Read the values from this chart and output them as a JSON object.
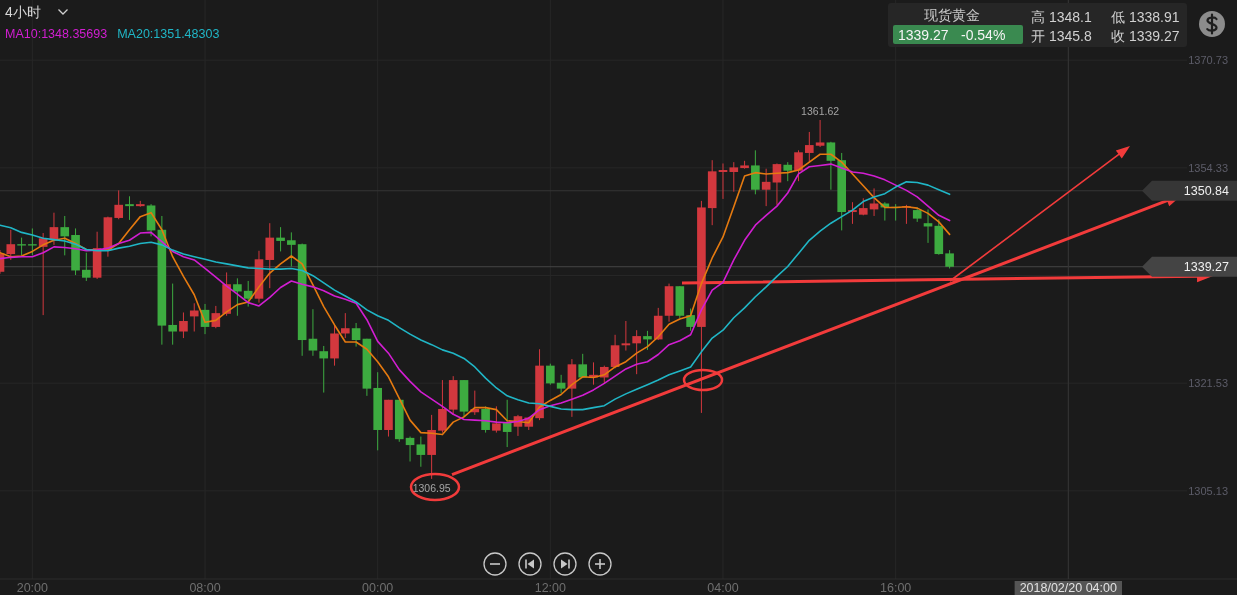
{
  "chart_data": {
    "type": "candlestick",
    "title": "现货黄金",
    "subtitle": "4小时",
    "categories": [
      null,
      null,
      null,
      "20:00",
      null,
      null,
      null,
      null,
      null,
      null,
      null,
      null,
      null,
      null,
      null,
      null,
      null,
      null,
      null,
      "08:00",
      null,
      null,
      null,
      null,
      null,
      null,
      null,
      null,
      null,
      null,
      null,
      null,
      null,
      null,
      null,
      "00:00",
      null,
      null,
      null,
      null,
      null,
      null,
      null,
      null,
      null,
      null,
      null,
      null,
      null,
      null,
      null,
      "12:00",
      null,
      null,
      null,
      null,
      null,
      null,
      null,
      null,
      null,
      null,
      null,
      null,
      null,
      null,
      null,
      "04:00",
      null,
      null,
      null,
      null,
      null,
      null,
      null,
      null,
      null,
      null,
      null,
      null,
      null,
      null,
      null,
      "16:00",
      null,
      null,
      null,
      null,
      null,
      null,
      null,
      null,
      null,
      null,
      null,
      null,
      null,
      null,
      null,
      "2018/02/20 04:00",
      null,
      null,
      null,
      null,
      null,
      null,
      null,
      null,
      null,
      null
    ],
    "ohlc": [
      [
        1338.5,
        1341.8,
        1338.2,
        1341.3
      ],
      [
        1341.2,
        1344.9,
        1340.3,
        1342.7
      ],
      [
        1342.7,
        1343.7,
        1341.0,
        1342.5
      ],
      [
        1342.7,
        1345.1,
        1341.0,
        1342.5
      ],
      [
        1342.3,
        1344.4,
        1331.9,
        1343.6
      ],
      [
        1343.3,
        1347.5,
        1342.6,
        1345.3
      ],
      [
        1345.3,
        1347.0,
        1341.0,
        1343.9
      ],
      [
        1344.1,
        1345.1,
        1338.0,
        1338.7
      ],
      [
        1338.8,
        1341.4,
        1337.1,
        1337.6
      ],
      [
        1337.6,
        1344.6,
        1337.4,
        1342.1
      ],
      [
        1341.8,
        1346.9,
        1340.8,
        1346.8
      ],
      [
        1346.7,
        1350.9,
        1346.5,
        1348.7
      ],
      [
        1348.8,
        1350.0,
        1346.4,
        1348.5
      ],
      [
        1348.5,
        1349.3,
        1348.4,
        1348.8
      ],
      [
        1348.6,
        1348.8,
        1343.9,
        1344.8
      ],
      [
        1344.9,
        1347.0,
        1327.4,
        1330.3
      ],
      [
        1330.4,
        1336.7,
        1327.4,
        1329.4
      ],
      [
        1329.4,
        1332.3,
        1328.4,
        1331.0
      ],
      [
        1331.7,
        1333.7,
        1329.4,
        1332.6
      ],
      [
        1332.7,
        1333.6,
        1329.0,
        1330.1
      ],
      [
        1330.1,
        1333.3,
        1329.9,
        1332.2
      ],
      [
        1332.1,
        1338.4,
        1331.8,
        1336.6
      ],
      [
        1336.6,
        1337.5,
        1331.8,
        1335.5
      ],
      [
        1335.6,
        1337.1,
        1333.2,
        1334.4
      ],
      [
        1334.4,
        1341.7,
        1333.8,
        1340.4
      ],
      [
        1340.3,
        1345.9,
        1336.0,
        1343.7
      ],
      [
        1343.7,
        1345.3,
        1341.6,
        1343.2
      ],
      [
        1343.3,
        1344.5,
        1339.3,
        1342.6
      ],
      [
        1342.7,
        1342.8,
        1325.7,
        1328.1
      ],
      [
        1328.3,
        1332.8,
        1325.7,
        1326.5
      ],
      [
        1326.4,
        1327.2,
        1320.1,
        1325.3
      ],
      [
        1325.3,
        1330.4,
        1324.2,
        1329.1
      ],
      [
        1329.1,
        1332.2,
        1328.4,
        1329.9
      ],
      [
        1329.9,
        1330.7,
        1327.1,
        1328.1
      ],
      [
        1328.3,
        1328.3,
        1319.6,
        1320.7
      ],
      [
        1320.8,
        1323.2,
        1311.3,
        1314.4
      ],
      [
        1314.4,
        1319.0,
        1313.4,
        1319.0
      ],
      [
        1319.0,
        1319.0,
        1312.6,
        1313.0
      ],
      [
        1313.2,
        1313.4,
        1309.6,
        1312.1
      ],
      [
        1312.2,
        1313.4,
        1308.8,
        1310.6
      ],
      [
        1310.6,
        1316.7,
        1306.95,
        1314.4
      ],
      [
        1314.3,
        1322.0,
        1314.0,
        1317.6
      ],
      [
        1317.5,
        1322.6,
        1316.7,
        1322.0
      ],
      [
        1322.0,
        1322.0,
        1316.4,
        1317.2
      ],
      [
        1317.1,
        1320.4,
        1316.7,
        1317.6
      ],
      [
        1317.6,
        1318.0,
        1314.0,
        1314.4
      ],
      [
        1314.3,
        1318.0,
        1314.0,
        1315.4
      ],
      [
        1315.5,
        1319.0,
        1311.8,
        1314.1
      ],
      [
        1314.9,
        1316.7,
        1313.5,
        1316.5
      ],
      [
        1314.9,
        1316.4,
        1314.4,
        1316.3
      ],
      [
        1316.2,
        1326.7,
        1315.9,
        1324.2
      ],
      [
        1324.2,
        1324.5,
        1321.3,
        1321.5
      ],
      [
        1321.6,
        1322.8,
        1320.0,
        1320.7
      ],
      [
        1320.7,
        1325.2,
        1316.4,
        1324.4
      ],
      [
        1324.4,
        1326.0,
        1322.3,
        1322.4
      ],
      [
        1322.4,
        1324.7,
        1321.3,
        1322.8
      ],
      [
        1322.4,
        1324.2,
        1321.5,
        1324.0
      ],
      [
        1324.0,
        1328.9,
        1323.8,
        1327.3
      ],
      [
        1327.3,
        1331.0,
        1326.5,
        1327.6
      ],
      [
        1327.6,
        1329.6,
        1322.9,
        1328.7
      ],
      [
        1328.7,
        1329.5,
        1326.6,
        1328.2
      ],
      [
        1328.2,
        1333.0,
        1328.1,
        1331.8
      ],
      [
        1331.8,
        1336.7,
        1330.9,
        1336.3
      ],
      [
        1336.3,
        1336.3,
        1331.4,
        1331.8
      ],
      [
        1331.9,
        1332.9,
        1329.5,
        1330.1
      ],
      [
        1330.1,
        1349.3,
        1317.0,
        1348.3
      ],
      [
        1348.2,
        1355.5,
        1345.6,
        1353.8
      ],
      [
        1353.7,
        1355.0,
        1349.6,
        1354.0
      ],
      [
        1353.7,
        1355.2,
        1350.7,
        1354.4
      ],
      [
        1354.3,
        1355.4,
        1354.2,
        1354.7
      ],
      [
        1354.7,
        1357.0,
        1350.3,
        1351.0
      ],
      [
        1351.0,
        1354.2,
        1348.5,
        1352.2
      ],
      [
        1352.1,
        1355.0,
        1348.7,
        1354.9
      ],
      [
        1354.8,
        1355.2,
        1352.3,
        1353.9
      ],
      [
        1353.9,
        1357.0,
        1352.3,
        1356.7
      ],
      [
        1356.6,
        1359.8,
        1355.2,
        1357.8
      ],
      [
        1357.7,
        1361.62,
        1357.5,
        1358.2
      ],
      [
        1358.2,
        1358.3,
        1351.0,
        1355.4
      ],
      [
        1355.5,
        1356.6,
        1344.8,
        1347.6
      ],
      [
        1347.6,
        1349.1,
        1345.8,
        1347.9
      ],
      [
        1347.2,
        1349.7,
        1347.1,
        1348.2
      ],
      [
        1348.0,
        1351.2,
        1347.0,
        1348.9
      ],
      [
        1348.9,
        1349.1,
        1346.3,
        1348.3
      ],
      [
        1348.4,
        1348.8,
        1346.3,
        1348.2
      ],
      [
        1348.3,
        1348.7,
        1345.8,
        1348.5
      ],
      [
        1347.9,
        1348.3,
        1346.1,
        1346.6
      ],
      [
        1345.9,
        1348.0,
        1342.9,
        1345.4
      ],
      [
        1345.5,
        1346.5,
        1341.1,
        1341.2
      ],
      [
        1341.3,
        1341.8,
        1339.0,
        1339.27
      ],
      null,
      null,
      null,
      null,
      null,
      null,
      null,
      null,
      null,
      null,
      null,
      null,
      null,
      null,
      null,
      null,
      null,
      null,
      null,
      null,
      null
    ],
    "series": [
      {
        "type": "line",
        "color": "#e57a10",
        "values": [
          1341.4,
          1340.8,
          1340.9,
          1341.6,
          1342.6,
          1343.3,
          1343.6,
          1342.8,
          1341.9,
          1341.8,
          1341.8,
          1342.8,
          1344.9,
          1346.9,
          1347.5,
          1344.9,
          1340.8,
          1337.8,
          1335.0,
          1330.8,
          1331.1,
          1332.4,
          1333.5,
          1333.9,
          1336.2,
          1338.3,
          1339.7,
          1340.9,
          1339.7,
          1336.5,
          1333.2,
          1330.4,
          1327.8,
          1327.8,
          1326.7,
          1324.8,
          1322.5,
          1319.2,
          1315.9,
          1314.0,
          1313.9,
          1313.7,
          1315.6,
          1316.4,
          1317.8,
          1317.8,
          1317.5,
          1315.8,
          1315.7,
          1315.5,
          1317.9,
          1318.9,
          1319.8,
          1321.3,
          1322.5,
          1322.4,
          1322.8,
          1324.0,
          1324.8,
          1326.1,
          1327.1,
          1328.6,
          1330.5,
          1331.3,
          1331.8,
          1336.7,
          1340.6,
          1343.8,
          1348.4,
          1353.1,
          1353.6,
          1353.4,
          1353.5,
          1353.6,
          1354.0,
          1355.2,
          1356.4,
          1356.4,
          1355.2,
          1353.4,
          1351.6,
          1349.8,
          1348.3,
          1348.3,
          1348.4,
          1348.2,
          1347.4,
          1346.1,
          1344.2,
          null,
          null,
          null,
          null,
          null,
          null,
          null,
          null,
          null,
          null,
          null,
          null,
          null,
          null,
          null,
          null,
          null,
          null,
          null,
          null,
          null
        ]
      },
      {
        "type": "line",
        "name": "MA10:1348.35693",
        "color": "#d21ed2",
        "values": [
          1340.5,
          1340.7,
          1340.8,
          1340.8,
          1341.4,
          1342.3,
          1342.2,
          1342.0,
          1341.7,
          1341.8,
          1342.1,
          1342.8,
          1343.3,
          1344.4,
          1344.5,
          1343.1,
          1341.6,
          1340.8,
          1340.3,
          1339.0,
          1337.7,
          1336.3,
          1335.1,
          1333.8,
          1333.3,
          1334.6,
          1336.1,
          1337.1,
          1336.6,
          1336.2,
          1335.6,
          1334.8,
          1334.3,
          1333.7,
          1331.2,
          1327.9,
          1326.1,
          1323.6,
          1321.8,
          1320.2,
          1319.1,
          1318.0,
          1316.8,
          1316.0,
          1315.9,
          1315.8,
          1315.6,
          1315.5,
          1315.7,
          1316.2,
          1317.5,
          1318.1,
          1318.5,
          1319.1,
          1319.7,
          1320.5,
          1321.5,
          1322.6,
          1323.7,
          1324.4,
          1324.8,
          1325.9,
          1327.4,
          1328.0,
          1328.9,
          1332.7,
          1335.7,
          1336.9,
          1340.3,
          1343.3,
          1345.6,
          1347.1,
          1348.5,
          1350.5,
          1353.4,
          1354.5,
          1354.7,
          1354.9,
          1354.3,
          1353.7,
          1353.5,
          1353.1,
          1352.5,
          1351.7,
          1350.9,
          1349.9,
          1348.5,
          1347.1,
          1346.3,
          null,
          null,
          null,
          null,
          null,
          null,
          null,
          null,
          null,
          null,
          null,
          null,
          null,
          null,
          null,
          null,
          null,
          null,
          null,
          null,
          null
        ]
      },
      {
        "type": "line",
        "name": "MA20:1351.48303",
        "color": "#20b6c6",
        "values": [
          1345.6,
          1345.2,
          1344.5,
          1344.1,
          1343.6,
          1343.4,
          1343.2,
          1342.7,
          1341.9,
          1341.7,
          1341.7,
          1342.1,
          1342.4,
          1342.8,
          1343.0,
          1342.6,
          1341.8,
          1341.2,
          1340.8,
          1340.4,
          1340.0,
          1339.7,
          1339.4,
          1339.1,
          1339.0,
          1338.9,
          1338.9,
          1339.0,
          1338.7,
          1337.9,
          1336.8,
          1335.7,
          1334.8,
          1333.9,
          1332.7,
          1331.8,
          1331.1,
          1330.0,
          1329.0,
          1328.1,
          1327.4,
          1326.6,
          1326.1,
          1325.3,
          1324.0,
          1322.3,
          1320.8,
          1319.6,
          1319.0,
          1318.5,
          1318.4,
          1318.0,
          1317.6,
          1317.5,
          1317.5,
          1317.8,
          1318.1,
          1319.1,
          1319.9,
          1320.6,
          1321.3,
          1322.0,
          1322.8,
          1323.4,
          1324.0,
          1326.3,
          1328.4,
          1329.6,
          1331.5,
          1333.0,
          1334.7,
          1336.2,
          1337.8,
          1339.3,
          1341.3,
          1343.3,
          1344.7,
          1345.9,
          1346.9,
          1347.9,
          1349.2,
          1349.9,
          1350.4,
          1351.4,
          1352.2,
          1352.1,
          1351.7,
          1351.0,
          1350.3,
          null,
          null,
          null,
          null,
          null,
          null,
          null,
          null,
          null,
          null,
          null,
          null,
          null,
          null,
          null,
          null,
          null,
          null,
          null,
          null,
          null
        ]
      }
    ],
    "ylim": [
      1291.7,
      1379.9
    ],
    "yticks": [
      1370.73,
      1354.33,
      {
        "value": 1337.93,
        "label": null
      },
      1321.53,
      1305.13
    ],
    "grid": true,
    "legend": "top left",
    "ref_lines": [
      {
        "axis": "y",
        "value": 1350.84,
        "label": "1350.84",
        "color": "#363636"
      },
      {
        "axis": "y",
        "value": 1339.27,
        "label": "1339.27",
        "color": "#444444"
      },
      {
        "axis": "x",
        "value": "2018/02/20 04:00",
        "color": "#353535"
      }
    ],
    "annotations": [
      {
        "text": "1361.62",
        "y": 1361.62
      },
      {
        "text": "1306.95",
        "y": 1306.95
      },
      "1339.27",
      "-0.54%",
      "高 1348.1",
      "低 1338.91",
      "开 1345.8",
      "收 1339.27"
    ]
  }
}
